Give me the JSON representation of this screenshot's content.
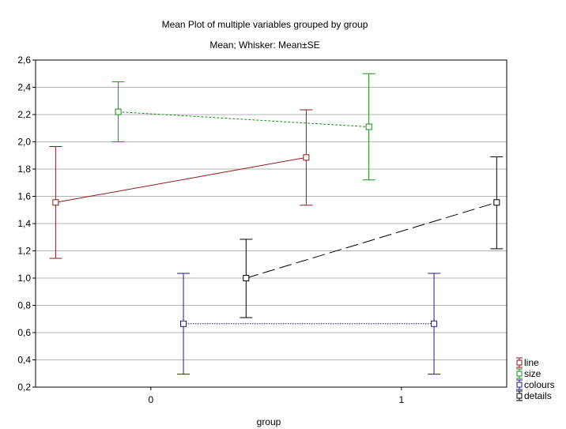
{
  "chart_data": {
    "type": "line",
    "title": "Mean Plot of multiple variables grouped by group",
    "subtitle": "Mean; Whisker: Mean±SE",
    "xlabel": "group",
    "ylabel": "",
    "x_ticks": [
      0,
      1
    ],
    "x_tick_labels": [
      "0",
      "1"
    ],
    "xlim": [
      -0.46,
      1.42
    ],
    "ylim": [
      0.2,
      2.6
    ],
    "y_ticks": [
      0.2,
      0.4,
      0.6,
      0.8,
      1.0,
      1.2,
      1.4,
      1.6,
      1.8,
      2.0,
      2.2,
      2.4,
      2.6
    ],
    "y_tick_labels": [
      "0,2",
      "0,4",
      "0,6",
      "0,8",
      "1,0",
      "1,2",
      "1,4",
      "1,6",
      "1,8",
      "2,0",
      "2,2",
      "2,4",
      "2,6"
    ],
    "grid": true,
    "legend_position": "bottom-right",
    "series": [
      {
        "name": "line",
        "color": "#8b1a1a",
        "dash": "",
        "points": [
          {
            "x": -0.38,
            "mean": 1.555,
            "lower": 1.145,
            "upper": 1.965
          },
          {
            "x": 0.62,
            "mean": 1.885,
            "lower": 1.535,
            "upper": 2.235
          }
        ]
      },
      {
        "name": "size",
        "color": "#1a8c1a",
        "dash": "3,2",
        "points": [
          {
            "x": -0.13,
            "mean": 2.22,
            "lower": 2.0,
            "upper": 2.44
          },
          {
            "x": 0.87,
            "mean": 2.11,
            "lower": 1.72,
            "upper": 2.5
          }
        ]
      },
      {
        "name": "colours",
        "color": "#1a1a9c",
        "dash": "1.5,1.5",
        "points": [
          {
            "x": 0.13,
            "mean": 0.665,
            "lower": 0.295,
            "upper": 1.035
          },
          {
            "x": 1.13,
            "mean": 0.665,
            "lower": 0.295,
            "upper": 1.035
          }
        ]
      },
      {
        "name": "details",
        "color": "#000000",
        "dash": "16,6",
        "points": [
          {
            "x": 0.38,
            "mean": 1.0,
            "lower": 0.71,
            "upper": 1.285
          },
          {
            "x": 1.38,
            "mean": 1.555,
            "lower": 1.215,
            "upper": 1.89
          }
        ]
      }
    ]
  }
}
